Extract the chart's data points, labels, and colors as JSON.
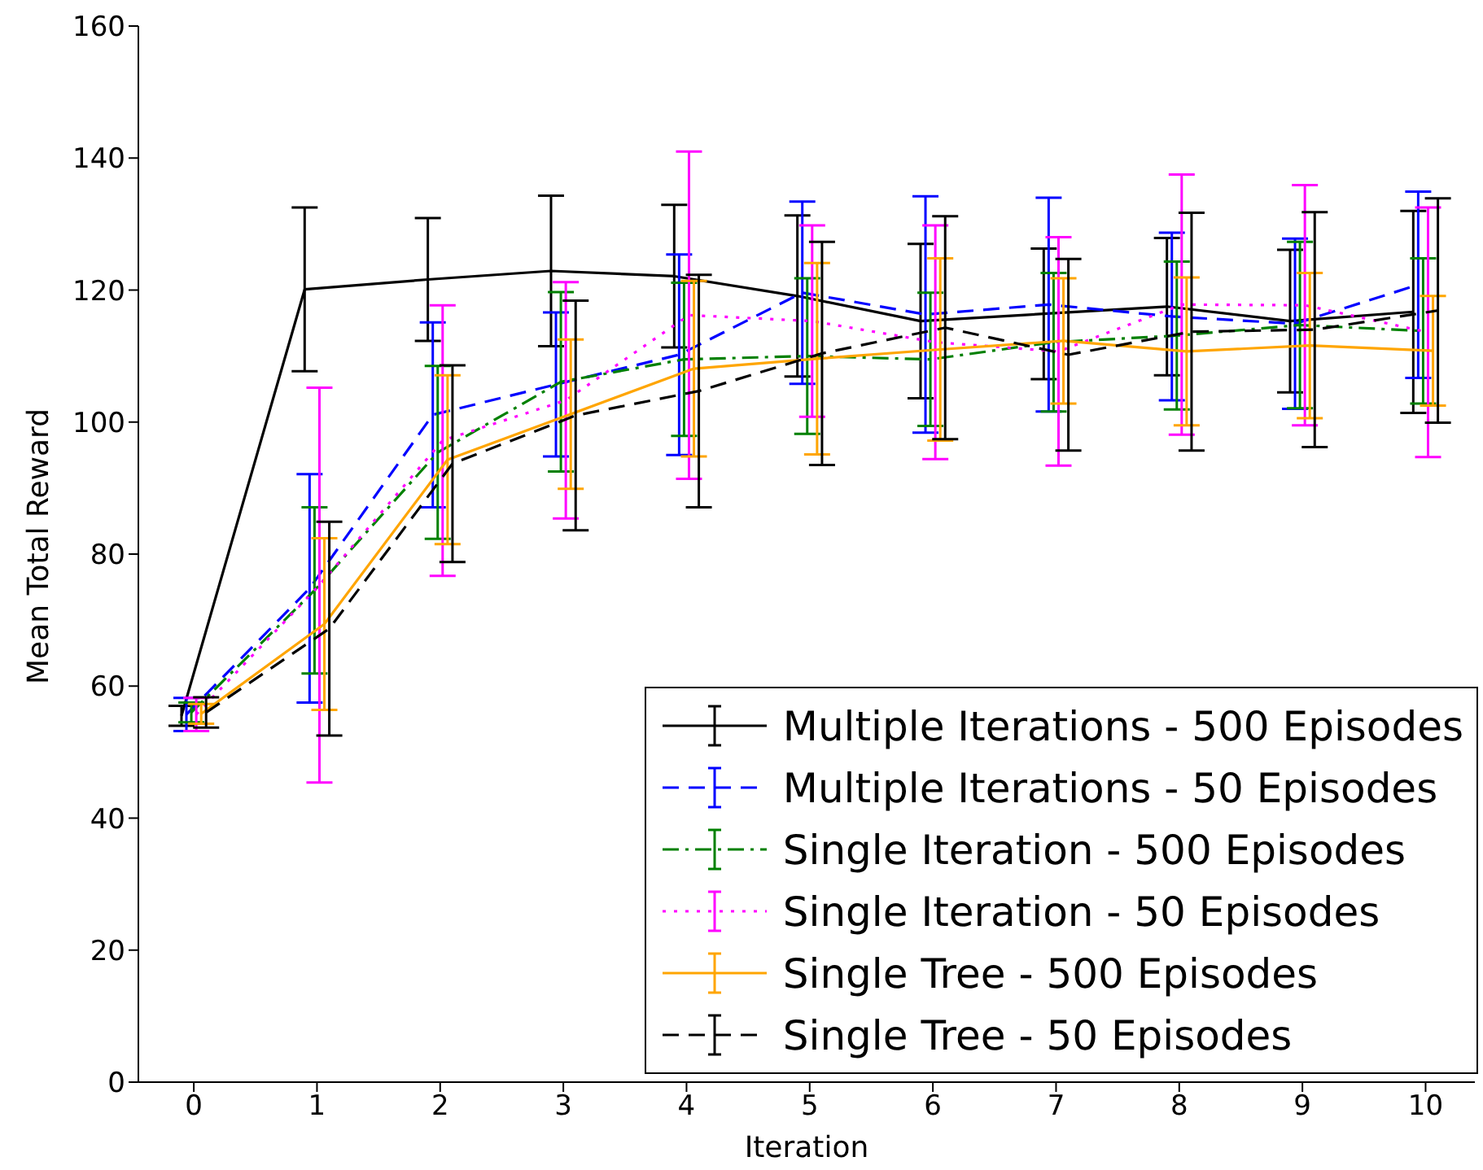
{
  "chart_data": {
    "type": "line",
    "xlabel": "Iteration",
    "ylabel": "Mean Total Reward",
    "xlim": [
      -0.45,
      10.4
    ],
    "xticks": [
      0,
      1,
      2,
      3,
      4,
      5,
      6,
      7,
      8,
      9,
      10
    ],
    "ylim": [
      0,
      160
    ],
    "yticks": [
      0,
      20,
      40,
      60,
      80,
      100,
      120,
      140,
      160
    ],
    "legend": "bottom right",
    "series": [
      {
        "name": "Multiple Iterations - 500 Episodes",
        "color": "#000000",
        "line_style": "solid",
        "x": [
          -0.1,
          0.9,
          1.9,
          2.9,
          3.9,
          4.9,
          5.9,
          6.9,
          7.9,
          8.9,
          9.9
        ],
        "values": [
          55.5,
          120.1,
          121.6,
          122.9,
          122.1,
          119.1,
          115.3,
          116.4,
          117.5,
          115.3,
          116.7
        ],
        "errors": [
          1.5,
          12.4,
          9.3,
          11.4,
          10.8,
          12.2,
          11.7,
          9.9,
          10.4,
          10.8,
          15.3
        ]
      },
      {
        "name": "Multiple Iterations - 50 Episodes",
        "color": "#0000ff",
        "line_style": "dashed",
        "x": [
          -0.06,
          0.94,
          1.94,
          2.94,
          3.94,
          4.94,
          5.94,
          6.94,
          7.94,
          8.94,
          9.94
        ],
        "values": [
          55.7,
          74.8,
          101.1,
          105.7,
          110.2,
          119.6,
          116.3,
          117.8,
          116,
          114.9,
          120.8
        ],
        "errors": [
          2.5,
          17.3,
          14,
          10.9,
          15.2,
          13.8,
          17.9,
          16.2,
          12.7,
          12.9,
          14.1
        ]
      },
      {
        "name": "Single Iteration - 500 Episodes",
        "color": "#008000",
        "line_style": "dashdot",
        "x": [
          -0.02,
          0.98,
          1.98,
          2.98,
          3.98,
          4.98,
          5.98,
          6.98,
          7.98,
          8.98,
          9.98
        ],
        "values": [
          56,
          74.5,
          95.4,
          106.1,
          109.5,
          110,
          109.5,
          112.1,
          113.1,
          114.7,
          113.8
        ],
        "errors": [
          1.5,
          12.6,
          13.1,
          13.6,
          11.6,
          11.8,
          10.1,
          10.5,
          11.2,
          12.6,
          11
        ]
      },
      {
        "name": "Single Iteration - 50 Episodes",
        "color": "#ff00ff",
        "line_style": "dotted",
        "x": [
          0.02,
          1.02,
          2.02,
          3.02,
          4.02,
          5.02,
          6.02,
          7.02,
          8.02,
          9.02,
          10.02
        ],
        "values": [
          55.7,
          75.3,
          97.2,
          103.3,
          116.2,
          115.3,
          112.1,
          110.7,
          117.8,
          117.7,
          113.6
        ],
        "errors": [
          2.5,
          29.9,
          20.5,
          17.9,
          24.8,
          14.5,
          17.7,
          17.3,
          19.7,
          18.2,
          18.9
        ]
      },
      {
        "name": "Single Tree - 500 Episodes",
        "color": "#ffa500",
        "line_style": "solid",
        "x": [
          0.06,
          1.06,
          2.06,
          3.06,
          4.06,
          5.06,
          6.06,
          7.06,
          8.06,
          9.06,
          10.06
        ],
        "values": [
          55.8,
          69.4,
          94.3,
          101.2,
          108.1,
          109.6,
          111,
          112.3,
          110.7,
          111.6,
          110.8
        ],
        "errors": [
          1.5,
          13,
          12.8,
          11.3,
          13.3,
          14.5,
          13.8,
          9.5,
          11.2,
          11,
          8.3
        ]
      },
      {
        "name": "Single Tree - 50 Episodes",
        "color": "#000000",
        "line_style": "dashed",
        "x": [
          0.1,
          1.1,
          2.1,
          3.1,
          4.1,
          5.1,
          6.1,
          7.1,
          8.1,
          9.1,
          10.1
        ],
        "values": [
          56,
          68.7,
          93.7,
          101,
          104.7,
          110.4,
          114.3,
          110.2,
          113.7,
          114,
          116.9
        ],
        "errors": [
          2.3,
          16.2,
          14.9,
          17.4,
          17.6,
          16.9,
          16.9,
          14.5,
          18,
          17.8,
          17
        ]
      }
    ]
  }
}
